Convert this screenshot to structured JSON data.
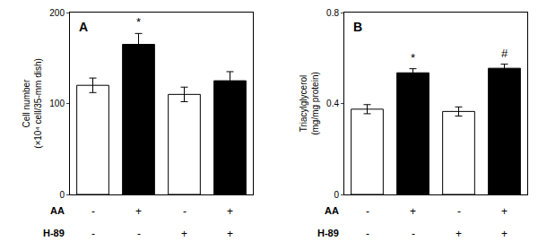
{
  "chart_data": [
    {
      "type": "bar",
      "title": "A",
      "values": [
        120,
        165,
        110,
        125
      ],
      "errors": [
        8,
        12,
        8,
        10
      ],
      "colors": [
        "white",
        "black",
        "white",
        "black"
      ],
      "ylabel": "Cell number\n(×10⁴ cell/35-mm dish)",
      "ylim": [
        0,
        200
      ],
      "yticks": [
        0,
        100,
        200
      ],
      "grid": false,
      "tick_labels": "y",
      "rows": [
        {
          "label": "AA",
          "labels": [
            "-",
            "+",
            "-",
            "+"
          ]
        },
        {
          "label": "H-89",
          "labels": [
            "-",
            "-",
            "+",
            "+"
          ]
        }
      ],
      "annotations": [
        {
          "bar": 1,
          "text": "*"
        }
      ]
    },
    {
      "type": "bar",
      "title": "B",
      "values": [
        0.375,
        0.535,
        0.365,
        0.555
      ],
      "errors": [
        0.02,
        0.018,
        0.02,
        0.018
      ],
      "colors": [
        "white",
        "black",
        "white",
        "black"
      ],
      "ylabel": "Triacylglycerol\n(mg/mg protein)",
      "ylim": [
        0,
        0.8
      ],
      "yticks": [
        0,
        0.4,
        0.8
      ],
      "grid": false,
      "tick_labels": "y",
      "rows": [
        {
          "label": "AA",
          "labels": [
            "-",
            "+",
            "-",
            "+"
          ]
        },
        {
          "label": "H-89",
          "labels": [
            "-",
            "-",
            "+",
            "+"
          ]
        }
      ],
      "annotations": [
        {
          "bar": 1,
          "text": "*"
        },
        {
          "bar": 3,
          "text": "#"
        }
      ]
    }
  ]
}
